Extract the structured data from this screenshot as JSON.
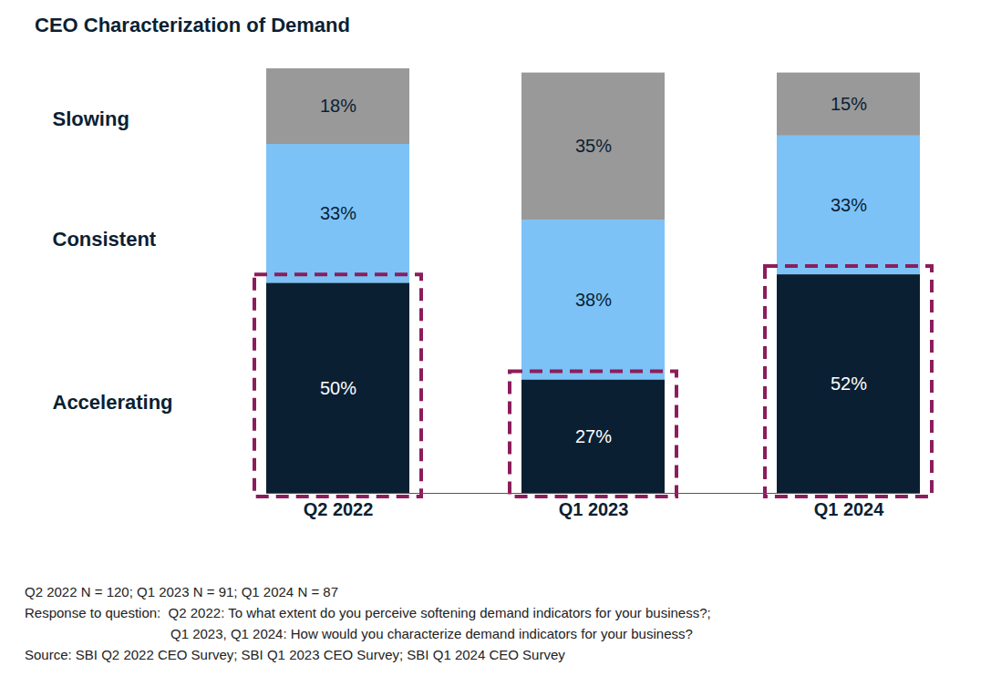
{
  "chart_data": {
    "type": "bar",
    "title": "CEO Characterization of Demand",
    "categories": [
      "Q2 2022",
      "Q1 2023",
      "Q1 2024"
    ],
    "series": [
      {
        "name": "Accelerating",
        "color": "#0b1f33",
        "values": [
          50,
          27,
          52
        ],
        "value_labels": [
          "50%",
          "27%",
          "52%"
        ]
      },
      {
        "name": "Consistent",
        "color": "#7cc2f7",
        "values": [
          33,
          38,
          33
        ],
        "value_labels": [
          "33%",
          "38%",
          "33%"
        ]
      },
      {
        "name": "Slowing",
        "color": "#999999",
        "values": [
          18,
          35,
          15
        ],
        "value_labels": [
          "18%",
          "35%",
          "15%"
        ]
      }
    ],
    "stacked": true,
    "data_labels": true,
    "tick_labels": "x",
    "ylim": [
      0,
      101
    ],
    "notes": [
      "Q2 2022 N = 120; Q1 2023 N = 91; Q1 2024 N = 87",
      "Response to question:  Q2 2022: To what extent do you perceive softening demand indicators for your business?;",
      "Q1 2023, Q1 2024: How would you characterize demand indicators for your business?",
      "Source: SBI Q2 2022 CEO Survey; SBI Q1 2023 CEO Survey; SBI Q1 2024 CEO Survey"
    ]
  }
}
